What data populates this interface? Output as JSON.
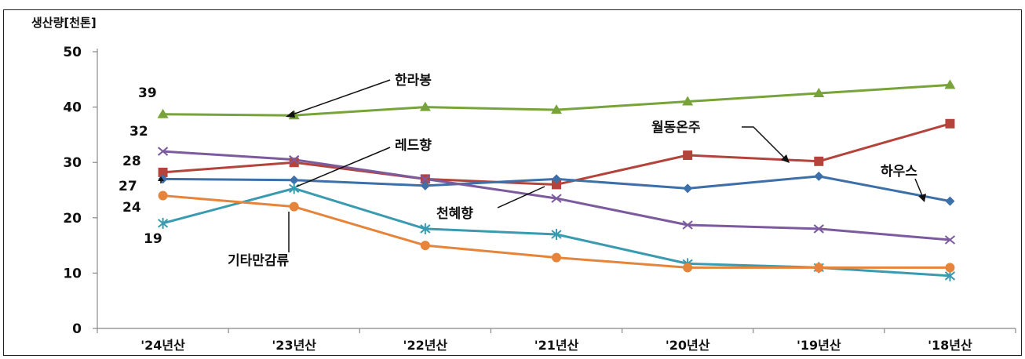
{
  "chart_data": {
    "type": "line",
    "ylabel": "생산량[천톤]",
    "ylim": [
      0,
      50
    ],
    "yticks": [
      0,
      10,
      20,
      30,
      40,
      50
    ],
    "categories": [
      "'24년산",
      "'23년산",
      "'22년산",
      "'21년산",
      "'20년산",
      "'19년산",
      "'18년산"
    ],
    "grid": false,
    "series": [
      {
        "name": "한라봉",
        "color": "#77a33a",
        "marker": "triangle",
        "values": [
          38.7,
          38.5,
          40.0,
          39.5,
          41.0,
          42.5,
          44.0
        ]
      },
      {
        "name": "월동온주",
        "color": "#b4433b",
        "marker": "square",
        "values": [
          28.2,
          30.0,
          27.0,
          26.0,
          31.3,
          30.2,
          37.0
        ]
      },
      {
        "name": "하우스",
        "color": "#3d6fa8",
        "marker": "diamond",
        "values": [
          27.0,
          26.8,
          25.8,
          27.0,
          25.3,
          27.5,
          23.0
        ]
      },
      {
        "name": "천혜향",
        "color": "#7c5a9e",
        "marker": "x",
        "values": [
          32.0,
          30.5,
          27.0,
          23.5,
          18.7,
          18.0,
          16.0
        ]
      },
      {
        "name": "레드향",
        "color": "#3a9bb0",
        "marker": "star",
        "values": [
          19.0,
          25.3,
          18.0,
          17.0,
          11.7,
          11.0,
          9.5
        ]
      },
      {
        "name": "기타만감류",
        "color": "#e5843a",
        "marker": "circle",
        "values": [
          24.0,
          22.0,
          15.0,
          12.8,
          11.0,
          11.0,
          11.0
        ]
      }
    ],
    "data_labels": [
      "39",
      "32",
      "28",
      "27",
      "24",
      "19"
    ]
  }
}
